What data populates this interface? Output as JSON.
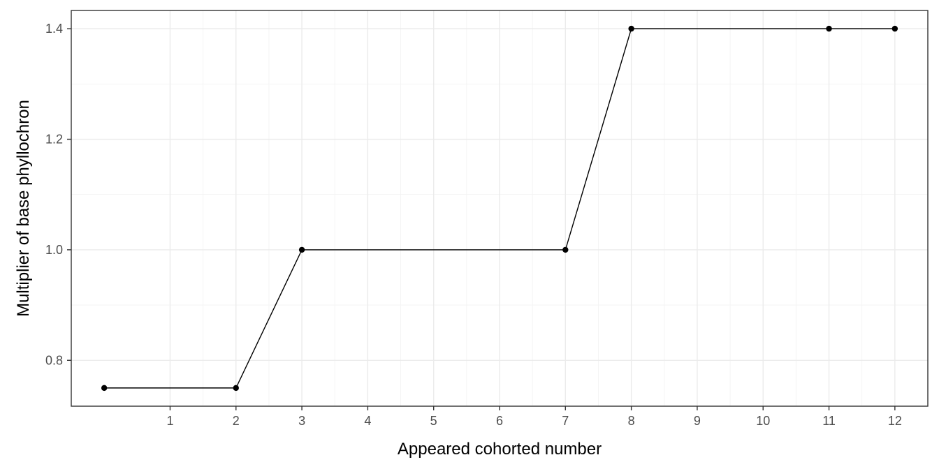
{
  "chart_data": {
    "type": "line",
    "title": "",
    "xlabel": "Appeared cohorted number",
    "ylabel": "Multiplier of base phyllochron",
    "x_ticks": [
      1,
      2,
      3,
      4,
      5,
      6,
      7,
      8,
      9,
      10,
      11,
      12
    ],
    "y_ticks": [
      0.8,
      1.0,
      1.2,
      1.4
    ],
    "y_tick_labels": [
      "0.8",
      "1.0",
      "1.2",
      "1.4"
    ],
    "xlim": [
      -0.5,
      12.5
    ],
    "ylim": [
      0.717,
      1.433
    ],
    "grid": true,
    "series": [
      {
        "name": "multiplier",
        "x": [
          0,
          2,
          3,
          7,
          8,
          11,
          12
        ],
        "y": [
          0.75,
          0.75,
          1.0,
          1.0,
          1.4,
          1.4,
          1.4
        ]
      }
    ]
  }
}
